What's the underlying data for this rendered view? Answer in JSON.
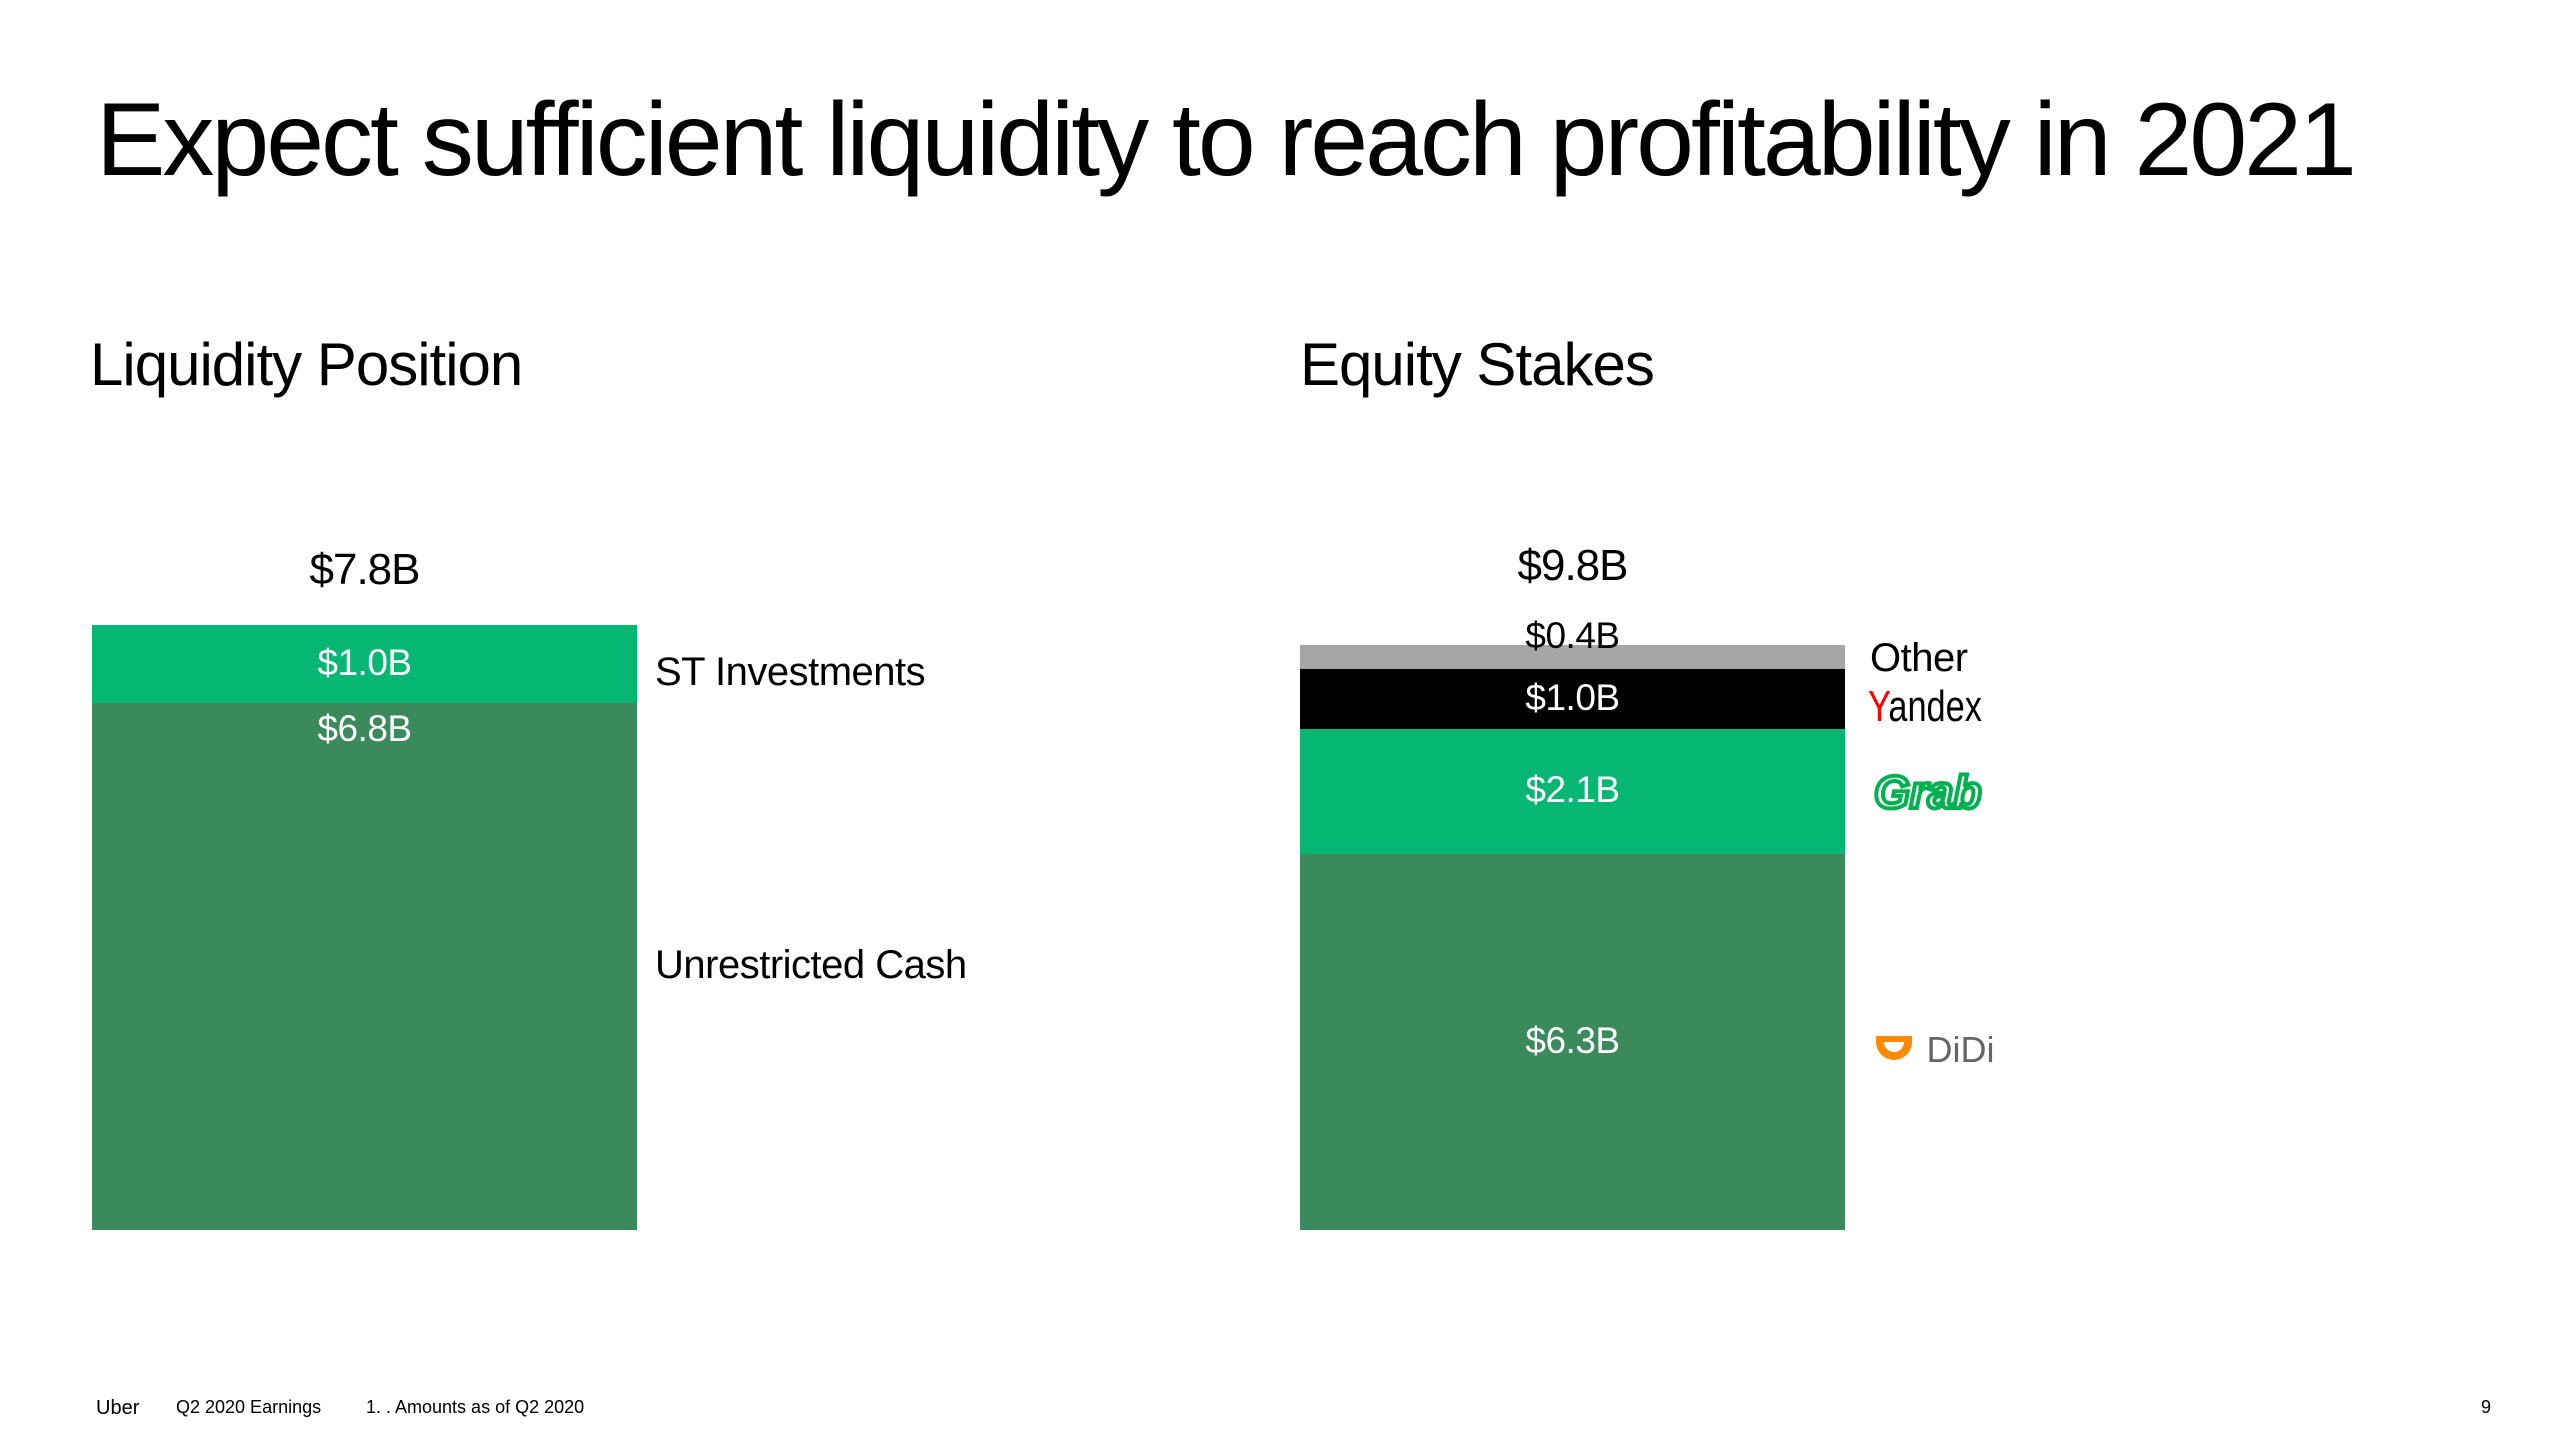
{
  "title": "Expect sufficient liquidity to reach profitability in 2021",
  "chart_data": [
    {
      "type": "bar",
      "stacked": true,
      "title": "Liquidity Position",
      "total_label": "$7.8B",
      "series": [
        {
          "name": "Unrestricted Cash",
          "value": 6.8,
          "value_label": "$6.8B",
          "color": "#3A8A5C"
        },
        {
          "name": "ST Investments",
          "value": 1.0,
          "value_label": "$1.0B",
          "color": "#06B774"
        }
      ]
    },
    {
      "type": "bar",
      "stacked": true,
      "title": "Equity Stakes",
      "total_label": "$9.8B",
      "series": [
        {
          "name": "DiDi",
          "value": 6.3,
          "value_label": "$6.3B",
          "color": "#3A8A5C",
          "logo": "didi-logo"
        },
        {
          "name": "Grab",
          "value": 2.1,
          "value_label": "$2.1B",
          "color": "#06B774",
          "logo": "grab-logo"
        },
        {
          "name": "Yandex",
          "value": 1.0,
          "value_label": "$1.0B",
          "color": "#000000",
          "logo": "yandex-logo"
        },
        {
          "name": "Other",
          "value": 0.4,
          "value_label": "$0.4B",
          "color": "#A6A6A6"
        }
      ]
    }
  ],
  "logos": {
    "yandex": {
      "text_first": "Y",
      "text_rest": "andex",
      "color_first": "#FF0000",
      "color_rest": "#000000"
    },
    "grab": {
      "text": "Grab",
      "color": "#00B14F"
    },
    "didi": {
      "text": "DiDi",
      "color": "#666666",
      "icon_color": "#FF8A00"
    }
  },
  "footer": {
    "brand": "Uber",
    "event": "Q2 2020 Earnings",
    "note": "1. . Amounts as of Q2 2020",
    "page": "9"
  }
}
